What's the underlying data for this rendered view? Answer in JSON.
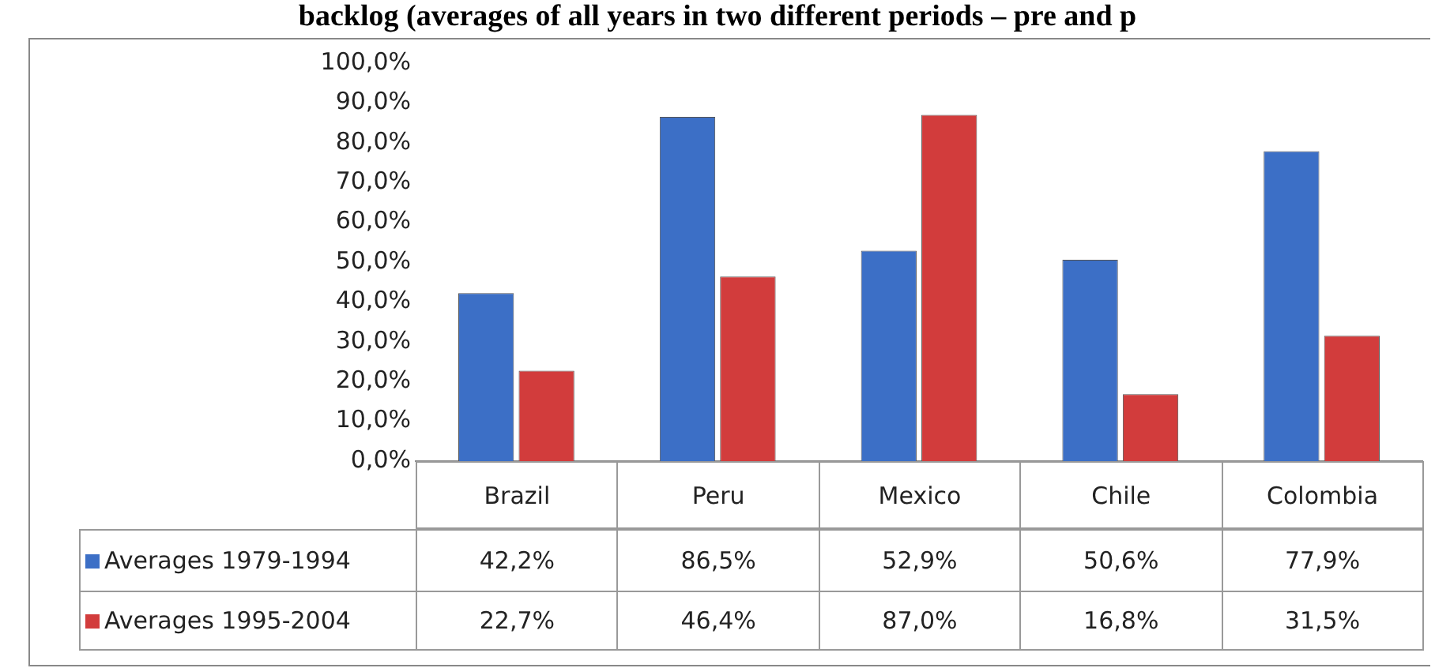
{
  "chart_data": {
    "type": "bar",
    "title": "backlog (averages of all years in two different periods – pre and p",
    "categories": [
      "Brazil",
      "Peru",
      "Mexico",
      "Chile",
      "Colombia"
    ],
    "series": [
      {
        "name": "Averages 1979-1994",
        "color": "#3c6fc6",
        "values": [
          42.2,
          86.5,
          52.9,
          50.6,
          77.9
        ],
        "value_labels": [
          "42,2%",
          "86,5%",
          "52,9%",
          "50,6%",
          "77,9%"
        ]
      },
      {
        "name": "Averages 1995-2004",
        "color": "#d23c3c",
        "values": [
          22.7,
          46.4,
          87.0,
          16.8,
          31.5
        ],
        "value_labels": [
          "22,7%",
          "46,4%",
          "87,0%",
          "16,8%",
          "31,5%"
        ]
      }
    ],
    "ylim": [
      0,
      100
    ],
    "yticks": [
      {
        "value": 0,
        "label": "0,0%"
      },
      {
        "value": 10,
        "label": "10,0%"
      },
      {
        "value": 20,
        "label": "20,0%"
      },
      {
        "value": 30,
        "label": "30,0%"
      },
      {
        "value": 40,
        "label": "40,0%"
      },
      {
        "value": 50,
        "label": "50,0%"
      },
      {
        "value": 60,
        "label": "60,0%"
      },
      {
        "value": 70,
        "label": "70,0%"
      },
      {
        "value": 80,
        "label": "80,0%"
      },
      {
        "value": 90,
        "label": "90,0%"
      },
      {
        "value": 100,
        "label": "100,0%"
      }
    ],
    "grid": false,
    "legend": "bottom"
  }
}
